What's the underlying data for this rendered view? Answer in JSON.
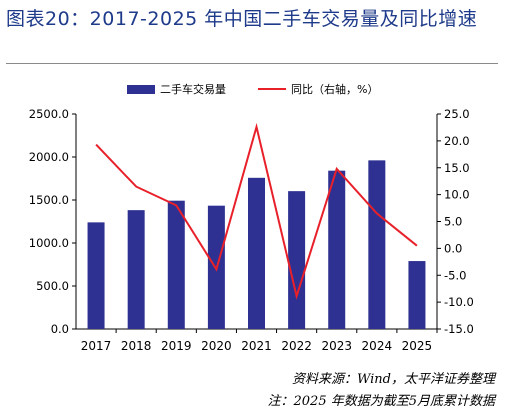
{
  "title": "图表20：2017-2025 年中国二手车交易量及同比增速",
  "source": "资料来源：Wind，太平洋证券整理",
  "note": "注：2025 年数据为截至5月底累计数据",
  "colors": {
    "bar": "#2e3192",
    "line": "#e8202a",
    "title": "#1e3a8a"
  },
  "chart_data": {
    "type": "bar",
    "categories": [
      "2017",
      "2018",
      "2019",
      "2020",
      "2021",
      "2022",
      "2023",
      "2024",
      "2025"
    ],
    "series": [
      {
        "name": "二手车交易量",
        "kind": "bar",
        "axis": "left",
        "values": [
          1240,
          1382,
          1492,
          1434,
          1758,
          1603,
          1841,
          1961,
          790
        ]
      },
      {
        "name": "同比（右轴，%）",
        "kind": "line",
        "axis": "right",
        "values": [
          19.3,
          11.5,
          8.0,
          -3.9,
          22.6,
          -8.9,
          14.8,
          6.5,
          0.5
        ]
      }
    ],
    "y_left": {
      "min": 0,
      "max": 2500,
      "ticks": [
        "0.0",
        "500.0",
        "1000.0",
        "1500.0",
        "2000.0",
        "2500.0"
      ]
    },
    "y_right": {
      "min": -15,
      "max": 25,
      "ticks": [
        "-15.0",
        "-10.0",
        "-5.0",
        "0.0",
        "5.0",
        "10.0",
        "15.0",
        "20.0",
        "25.0"
      ]
    },
    "legend_position": "top-center",
    "grid": false
  }
}
